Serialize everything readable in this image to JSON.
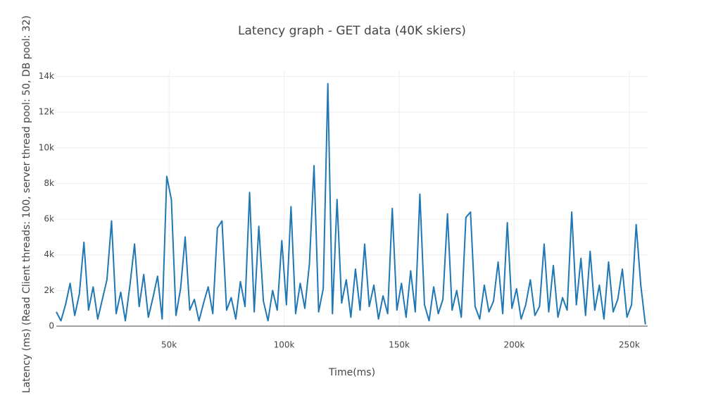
{
  "chart_data": {
    "type": "line",
    "title": "Latency graph - GET data (40K skiers)",
    "xlabel": "Time(ms)",
    "ylabel": "Latency (ms) (Read Client threads: 100, server thread pool: 50, DB pool: 32)",
    "xlim": [
      1000,
      258000
    ],
    "ylim": [
      0,
      14300
    ],
    "xticks": [
      {
        "value": 50000,
        "label": "50k"
      },
      {
        "value": 100000,
        "label": "100k"
      },
      {
        "value": 150000,
        "label": "150k"
      },
      {
        "value": 200000,
        "label": "200k"
      },
      {
        "value": 250000,
        "label": "250k"
      }
    ],
    "yticks": [
      0,
      {
        "value": 2000,
        "label": "2k"
      },
      {
        "value": 4000,
        "label": "4k"
      },
      {
        "value": 6000,
        "label": "6k"
      },
      {
        "value": 8000,
        "label": "8k"
      },
      {
        "value": 10000,
        "label": "10k"
      },
      {
        "value": 12000,
        "label": "12k"
      },
      {
        "value": 14000,
        "label": "14k"
      }
    ],
    "grid": true,
    "x": [
      1000,
      3000,
      5000,
      7000,
      9000,
      11000,
      13000,
      15000,
      17000,
      19000,
      21000,
      23000,
      25000,
      27000,
      29000,
      31000,
      33000,
      35000,
      37000,
      39000,
      41000,
      43000,
      45000,
      47000,
      49000,
      51000,
      53000,
      55000,
      57000,
      59000,
      61000,
      63000,
      65000,
      67000,
      69000,
      71000,
      73000,
      75000,
      77000,
      79000,
      81000,
      83000,
      85000,
      87000,
      89000,
      91000,
      93000,
      95000,
      97000,
      99000,
      101000,
      103000,
      105000,
      107000,
      109000,
      111000,
      113000,
      115000,
      117000,
      119000,
      121000,
      123000,
      125000,
      127000,
      129000,
      131000,
      133000,
      135000,
      137000,
      139000,
      141000,
      143000,
      145000,
      147000,
      149000,
      151000,
      153000,
      155000,
      157000,
      159000,
      161000,
      163000,
      165000,
      167000,
      169000,
      171000,
      173000,
      175000,
      177000,
      179000,
      181000,
      183000,
      185000,
      187000,
      189000,
      191000,
      193000,
      195000,
      197000,
      199000,
      201000,
      203000,
      205000,
      207000,
      209000,
      211000,
      213000,
      215000,
      217000,
      219000,
      221000,
      223000,
      225000,
      227000,
      229000,
      231000,
      233000,
      235000,
      237000,
      239000,
      241000,
      243000,
      245000,
      247000,
      249000,
      251000,
      253000,
      255000,
      257000
    ],
    "series": [
      {
        "color": "#1f77b4",
        "values": [
          800,
          300,
          1200,
          2400,
          600,
          1800,
          4700,
          900,
          2200,
          400,
          1500,
          2600,
          5900,
          700,
          1900,
          300,
          2300,
          4600,
          1100,
          2900,
          500,
          1600,
          2800,
          400,
          8400,
          7100,
          600,
          2100,
          5000,
          900,
          1500,
          300,
          1300,
          2200,
          700,
          5500,
          5900,
          900,
          1600,
          400,
          2500,
          1100,
          7500,
          800,
          5600,
          1400,
          300,
          2000,
          900,
          4800,
          1200,
          6700,
          700,
          2400,
          1000,
          3500,
          9000,
          800,
          2100,
          13600,
          700,
          7100,
          1300,
          2600,
          500,
          3200,
          900,
          4600,
          1100,
          2300,
          400,
          1700,
          700,
          6600,
          900,
          2400,
          500,
          3100,
          800,
          7400,
          1200,
          300,
          2200,
          700,
          1500,
          6300,
          900,
          2000,
          500,
          6100,
          6400,
          1100,
          400,
          2300,
          800,
          1400,
          3600,
          700,
          5800,
          1000,
          2100,
          400,
          1200,
          2600,
          600,
          1100,
          4600,
          800,
          3400,
          500,
          1600,
          900,
          6400,
          1200,
          3800,
          600,
          4200,
          900,
          2300,
          400,
          3600,
          800,
          1500,
          3200,
          500,
          1200,
          5700,
          2300,
          100
        ]
      }
    ]
  }
}
